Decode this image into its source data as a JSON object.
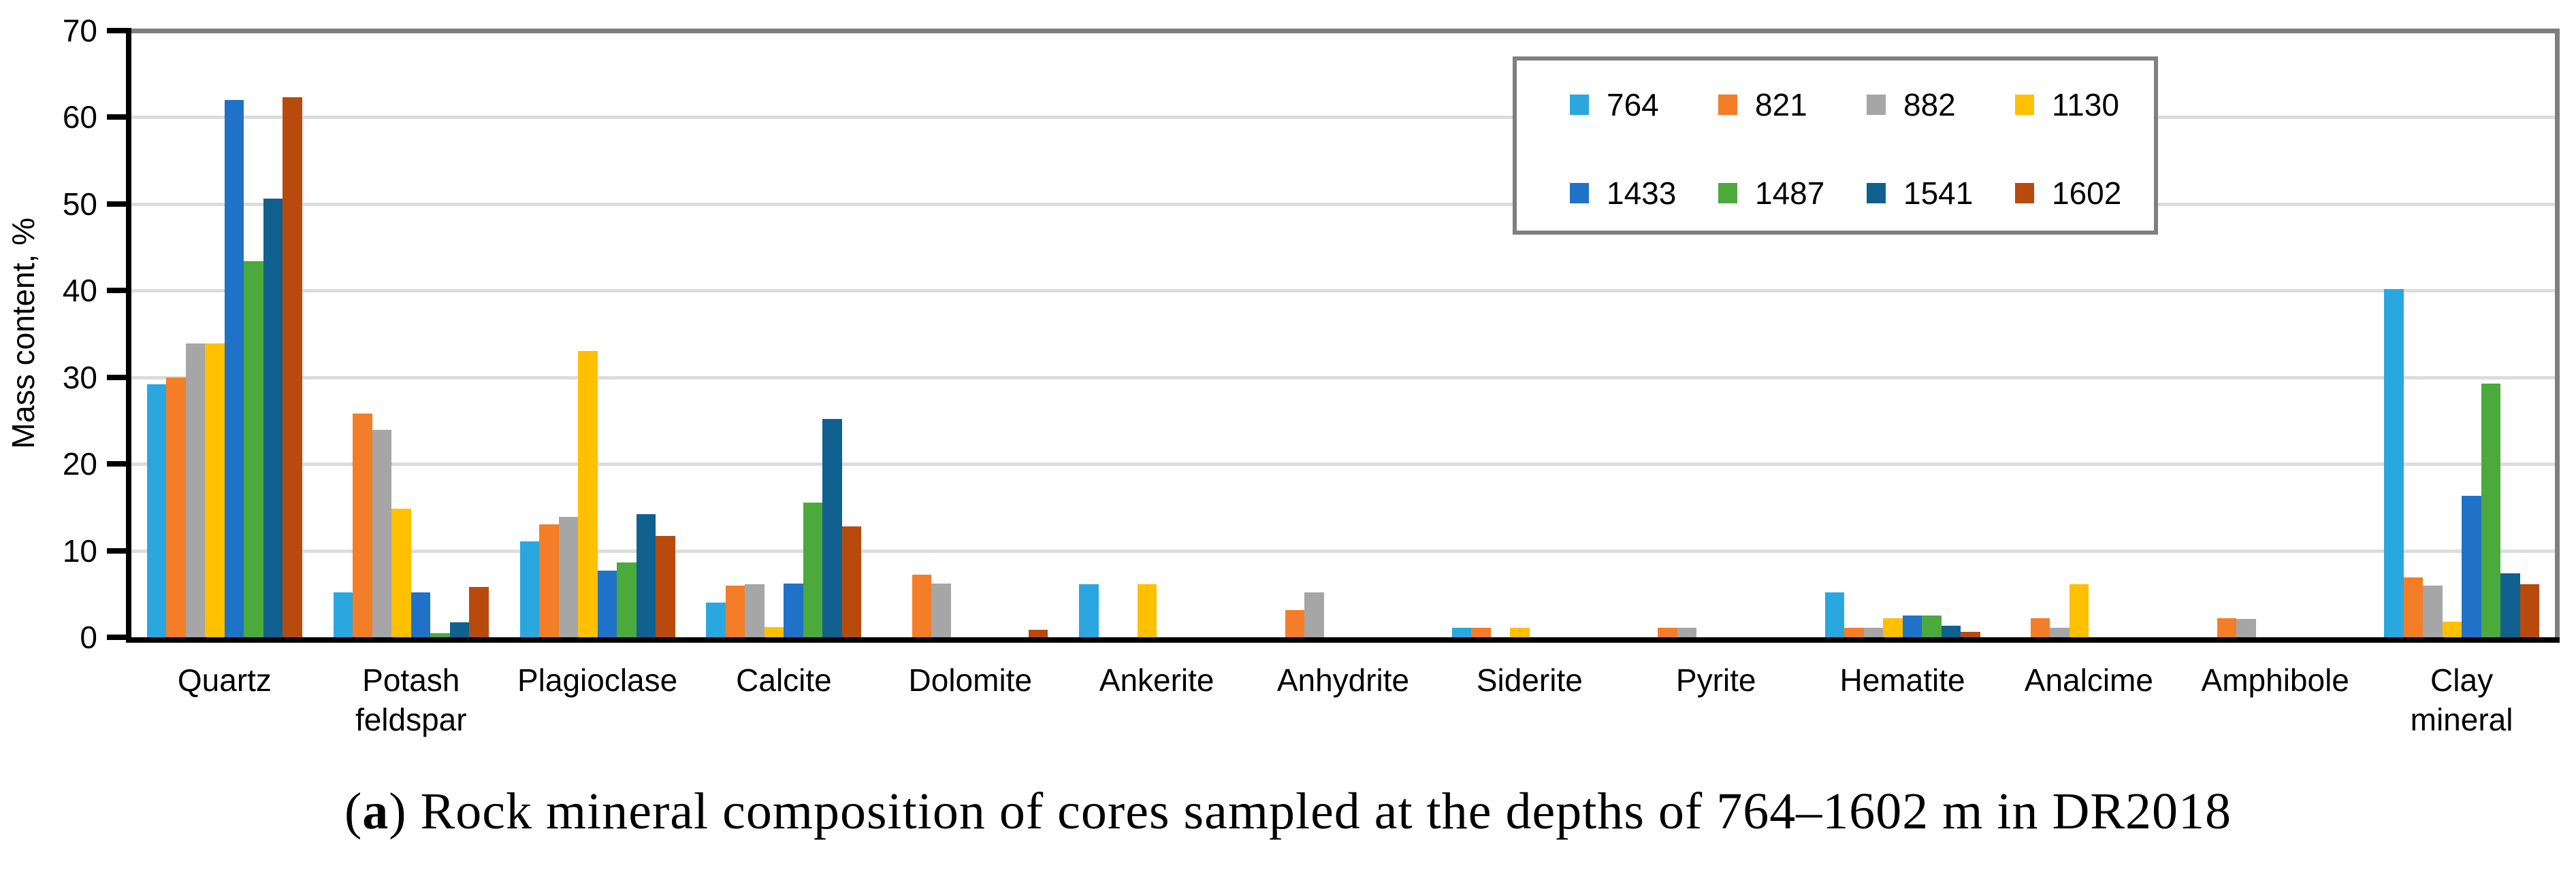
{
  "figure": {
    "y_axis_title": "Mass content, %",
    "caption": {
      "open_paren": "(",
      "bold_letter": "a",
      "rest": ") Rock mineral composition of cores sampled at the depths of 764–1602 m in DR2018"
    }
  },
  "chart_data": {
    "type": "bar",
    "title": "",
    "xlabel": "",
    "ylabel": "Mass content, %",
    "ylim": [
      0,
      70
    ],
    "yticks": [
      0,
      10,
      20,
      30,
      40,
      50,
      60,
      70
    ],
    "grid": "horizontal light-gray lines every 10",
    "legend_position": "boxed legend, upper right, 2 rows x 4 columns",
    "categories": [
      "Quartz",
      "Potash\nfeldspar",
      "Plagioclase",
      "Calcite",
      "Dolomite",
      "Ankerite",
      "Anhydrite",
      "Siderite",
      "Pyrite",
      "Hematite",
      "Analcime",
      "Amphibole",
      "Clay\nmineral"
    ],
    "series": [
      {
        "name": "764",
        "color": "#2BA7DF",
        "values": [
          29.2,
          5.2,
          11.1,
          4.0,
          0,
          6.1,
          0,
          1.1,
          0,
          5.2,
          0,
          0,
          40.2
        ]
      },
      {
        "name": "821",
        "color": "#F47D28",
        "values": [
          30.0,
          25.8,
          13.0,
          6.0,
          7.2,
          0,
          3.1,
          1.1,
          1.1,
          1.1,
          2.2,
          2.2,
          6.9
        ]
      },
      {
        "name": "882",
        "color": "#A6A6A6",
        "values": [
          33.9,
          23.9,
          13.9,
          6.1,
          6.2,
          0,
          5.2,
          0,
          1.1,
          1.1,
          1.1,
          2.1,
          6.0
        ]
      },
      {
        "name": "1130",
        "color": "#FFC000",
        "values": [
          33.9,
          14.8,
          33.0,
          1.2,
          0,
          6.1,
          0,
          1.1,
          0,
          2.2,
          6.1,
          0,
          1.8
        ]
      },
      {
        "name": "1433",
        "color": "#1F72C7",
        "values": [
          62.0,
          5.2,
          7.7,
          6.2,
          0,
          0,
          0,
          0,
          0,
          2.5,
          0,
          0,
          16.3
        ]
      },
      {
        "name": "1487",
        "color": "#4CA93C",
        "values": [
          43.4,
          0.5,
          8.6,
          15.5,
          0,
          0,
          0,
          0,
          0,
          2.5,
          0,
          0,
          29.3
        ]
      },
      {
        "name": "1541",
        "color": "#10618F",
        "values": [
          50.6,
          1.7,
          14.2,
          25.2,
          0,
          0,
          0,
          0,
          0,
          1.3,
          0,
          0,
          7.4
        ]
      },
      {
        "name": "1602",
        "color": "#B94A0D",
        "values": [
          62.3,
          5.8,
          11.7,
          12.8,
          0.9,
          0,
          0,
          0,
          0,
          0.6,
          0,
          0,
          6.1
        ]
      }
    ]
  }
}
